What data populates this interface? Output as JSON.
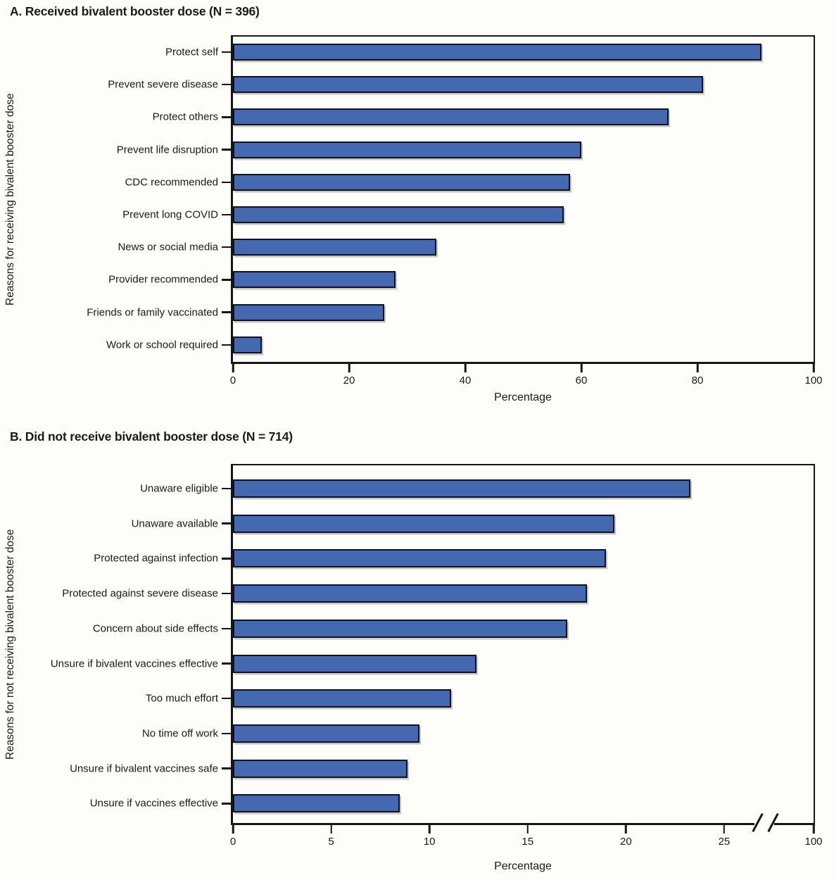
{
  "figure": {
    "background": "#fdfdfa",
    "text_color": "#1a1a1a"
  },
  "chart_data": [
    {
      "panel": "A",
      "type": "bar",
      "orientation": "horizontal",
      "title": "A. Received bivalent booster dose (N = 396)",
      "n": 396,
      "ylabel": "Reasons for receiving bivalent booster dose",
      "xlabel": "Percentage",
      "categories": [
        "Protect self",
        "Prevent severe disease",
        "Protect others",
        "Prevent life disruption",
        "CDC recommended",
        "Prevent long COVID",
        "News or social media",
        "Provider recommended",
        "Friends or family vaccinated",
        "Work or school required"
      ],
      "values": [
        91,
        81,
        75,
        60,
        58,
        57,
        35,
        28,
        26,
        5
      ],
      "xlim": [
        0,
        100
      ],
      "xticks": [
        0,
        20,
        40,
        60,
        80,
        100
      ],
      "grid": false,
      "legend": null,
      "bar_color": "#4569B0",
      "bar_border_color": "#10131f",
      "axis_color": "#161616",
      "scale": {
        "tick_max_value": 100,
        "tick_max_fraction": 1.0
      },
      "axis_break": null
    },
    {
      "panel": "B",
      "type": "bar",
      "orientation": "horizontal",
      "title": "B. Did not receive bivalent booster dose (N = 714)",
      "n": 714,
      "ylabel": "Reasons for not receiving bivalent booster dose",
      "xlabel": "Percentage",
      "categories": [
        "Unaware eligible",
        "Unaware available",
        "Protected against infection",
        "Protected against severe disease",
        "Concern about side effects",
        "Unsure if bivalent vaccines effective",
        "Too much effort",
        "No time off work",
        "Unsure if bivalent vaccines safe",
        "Unsure if vaccines effective"
      ],
      "values": [
        23.3,
        19.4,
        19.0,
        18.0,
        17.0,
        12.4,
        11.1,
        9.5,
        8.9,
        8.5
      ],
      "xlim": [
        0,
        100
      ],
      "xticks": [
        0,
        5,
        10,
        15,
        20,
        25
      ],
      "extra_xticks": [
        100
      ],
      "grid": false,
      "legend": null,
      "bar_color": "#4569B0",
      "bar_border_color": "#10131f",
      "axis_color": "#161616",
      "scale": {
        "tick_max_value": 25,
        "tick_max_fraction": 0.846
      },
      "axis_break": {
        "between": [
          25,
          100
        ],
        "gap_fraction": [
          0.898,
          0.932
        ],
        "slash_fractions": [
          0.902,
          0.928
        ]
      }
    }
  ]
}
